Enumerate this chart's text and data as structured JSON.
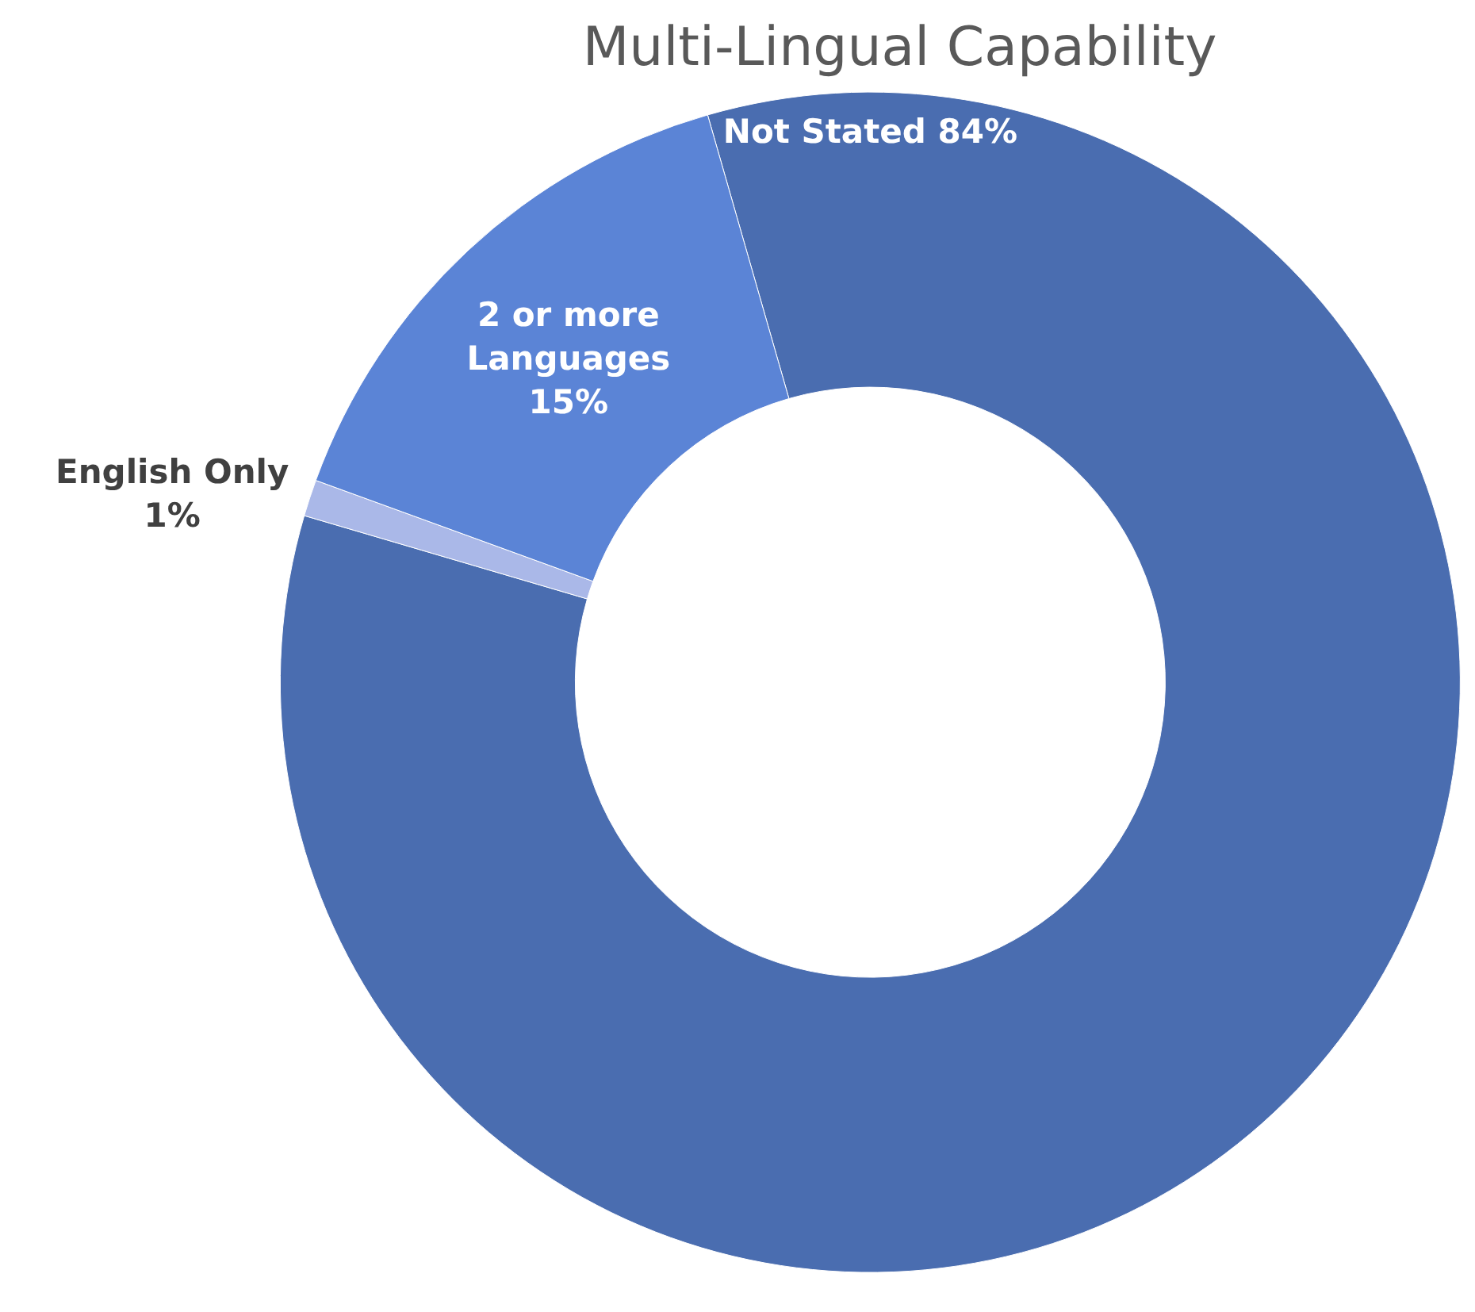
{
  "chart_data": {
    "type": "donut",
    "title": "Multi-Lingual Capability",
    "categories": [
      "Not Stated",
      "English Only",
      "2 or more Languages"
    ],
    "values": [
      84,
      1,
      15
    ],
    "colors": [
      "#4a6db0",
      "#aab8e8",
      "#5b84d6"
    ],
    "value_labels": [
      "84%",
      "1%",
      "15%"
    ],
    "legend": false
  }
}
